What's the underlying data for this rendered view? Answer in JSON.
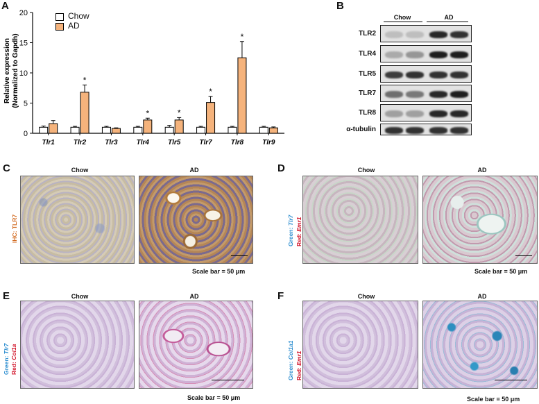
{
  "panels": {
    "A": "A",
    "B": "B",
    "C": "C",
    "D": "D",
    "E": "E",
    "F": "F"
  },
  "conditions": {
    "chow": "Chow",
    "ad": "AD"
  },
  "scale_bar": "Scale bar = 50 μm",
  "chart_data": {
    "type": "bar",
    "categories": [
      "Tlr1",
      "Tlr2",
      "Tlr3",
      "Tlr4",
      "Tlr5",
      "Tlr7",
      "Tlr8",
      "Tlr9"
    ],
    "series": [
      {
        "name": "Chow",
        "color": "#ffffff",
        "values": [
          1.0,
          1.0,
          1.0,
          1.0,
          1.0,
          1.0,
          1.0,
          1.0
        ],
        "errors": [
          0.2,
          0.15,
          0.15,
          0.15,
          0.3,
          0.15,
          0.15,
          0.15
        ]
      },
      {
        "name": "AD",
        "color": "#f5b37c",
        "values": [
          1.6,
          6.8,
          0.8,
          2.2,
          2.2,
          5.1,
          12.5,
          0.9
        ],
        "errors": [
          0.5,
          1.2,
          0.1,
          0.3,
          0.4,
          1.0,
          2.7,
          0.15
        ]
      }
    ],
    "significant": [
      false,
      true,
      false,
      true,
      true,
      true,
      true,
      false
    ],
    "significance_mark": "*",
    "ylabel_line1": "Relative expression",
    "ylabel_line2": "(Normalized to Gapdh)",
    "yticks": [
      0,
      5,
      10,
      15,
      20
    ],
    "ylim": [
      0,
      20
    ],
    "legend_position": "top-left"
  },
  "western_blot": {
    "columns": [
      "Chow",
      "AD"
    ],
    "proteins": [
      "TLR2",
      "TLR4",
      "TLR5",
      "TLR7",
      "TLR8",
      "α-tubulin"
    ]
  },
  "stain_labels": {
    "C": {
      "prefix": "IHC: ",
      "marker": "TLR7",
      "marker_color": "#d2691e"
    },
    "D": {
      "green_prefix": "Green: ",
      "green": "Tlr7",
      "red_prefix": "Red: ",
      "red": "Emr1"
    },
    "E": {
      "green_prefix": "Green: ",
      "green": "Tlr7",
      "red_prefix": "Red: ",
      "red": "Col1a"
    },
    "F": {
      "green_prefix": "Green: ",
      "green": "Col1a1",
      "red_prefix": "Red: ",
      "red": "Emr1"
    }
  },
  "colors": {
    "green_label": "#2f8fd0",
    "red_label": "#d2142a"
  }
}
